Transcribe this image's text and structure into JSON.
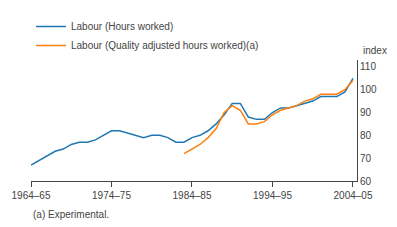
{
  "chart_data": {
    "type": "line",
    "ylabel": "index",
    "footnote": "(a) Experimental.",
    "xlim": [
      1964.5,
      2005.0
    ],
    "ylim": [
      60,
      113
    ],
    "yticks": [
      60,
      70,
      80,
      90,
      100,
      110
    ],
    "xticks": [
      {
        "value": 1964.5,
        "label": "1964–65"
      },
      {
        "value": 1974.5,
        "label": "1974–75"
      },
      {
        "value": 1984.5,
        "label": "1984–85"
      },
      {
        "value": 1994.5,
        "label": "1994–95"
      },
      {
        "value": 2004.5,
        "label": "2004–05"
      }
    ],
    "grid": false,
    "legend": "upper left",
    "series": [
      {
        "name": "Labour (Hours worked)",
        "x": [
          1964.5,
          1965.5,
          1966.5,
          1967.5,
          1968.5,
          1969.5,
          1970.5,
          1971.5,
          1972.5,
          1973.5,
          1974.5,
          1975.5,
          1976.5,
          1977.5,
          1978.5,
          1979.5,
          1980.5,
          1981.5,
          1982.5,
          1983.5,
          1984.5,
          1985.5,
          1986.5,
          1987.5,
          1988.5,
          1989.5,
          1990.5,
          1991.5,
          1992.5,
          1993.5,
          1994.5,
          1995.5,
          1996.5,
          1997.5,
          1998.5,
          1999.5,
          2000.5,
          2001.5,
          2002.5,
          2003.5,
          2004.5
        ],
        "values": [
          67,
          69,
          71,
          73,
          74,
          76,
          77,
          77,
          78,
          80,
          82,
          82,
          81,
          80,
          79,
          80,
          80,
          79,
          77,
          77,
          79,
          80,
          82,
          85,
          89,
          94,
          94,
          88,
          87,
          87,
          90,
          92,
          92,
          93,
          94,
          95,
          97,
          97,
          97,
          99,
          105
        ]
      },
      {
        "name": "Labour (Quality adjusted hours worked)(a)",
        "x": [
          1983.5,
          1984.5,
          1985.5,
          1986.5,
          1987.5,
          1988.5,
          1989.5,
          1990.5,
          1991.5,
          1992.5,
          1993.5,
          1994.5,
          1995.5,
          1996.5,
          1997.5,
          1998.5,
          1999.5,
          2000.5,
          2001.5,
          2002.5,
          2003.5,
          2004.5
        ],
        "values": [
          72,
          74,
          76,
          79,
          83,
          90,
          93,
          91,
          85,
          85,
          86,
          89,
          91,
          92,
          93,
          95,
          96,
          98,
          98,
          98,
          100,
          104
        ]
      }
    ]
  }
}
